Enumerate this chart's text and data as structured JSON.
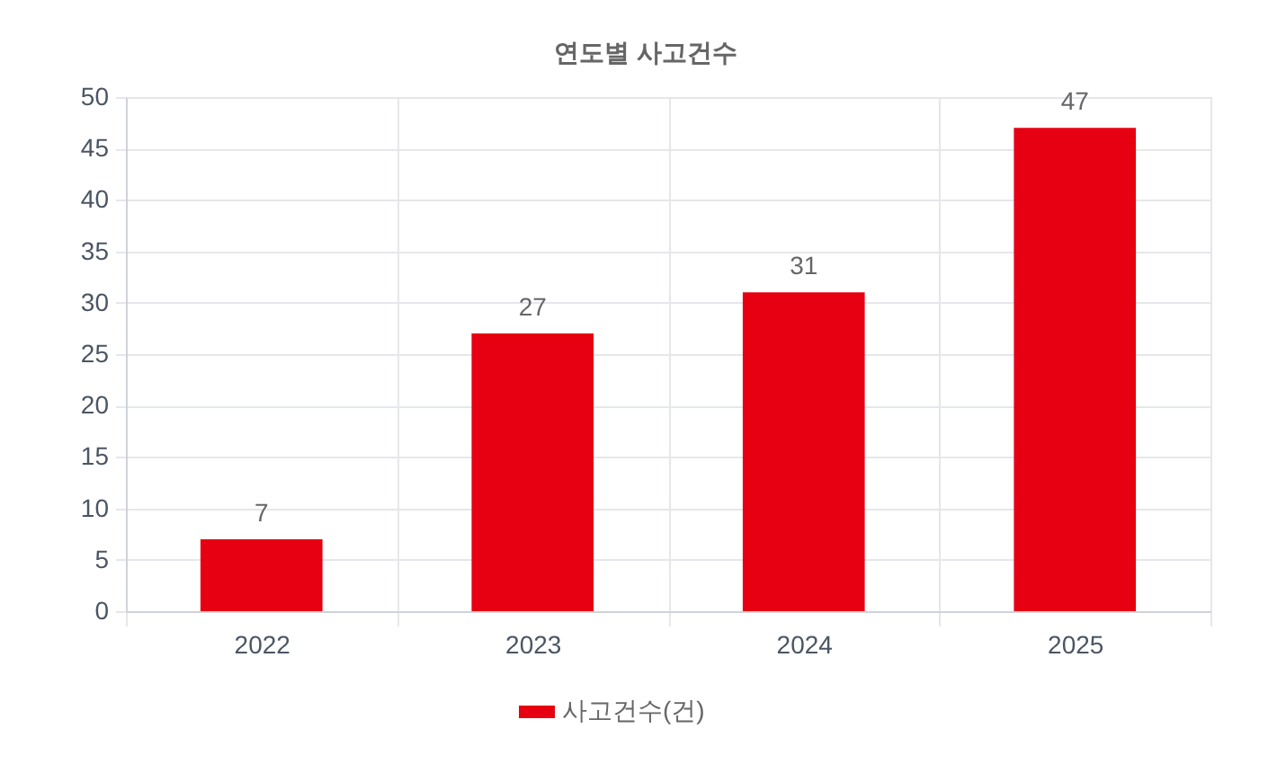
{
  "chart_data": {
    "type": "bar",
    "title": "연도별 사고건수",
    "categories": [
      "2022",
      "2023",
      "2024",
      "2025"
    ],
    "series": [
      {
        "name": "사고건수(건)",
        "color": "#e60012",
        "values": [
          7,
          27,
          31,
          47
        ]
      }
    ],
    "ylim": [
      0,
      50
    ],
    "yticks": [
      0,
      5,
      10,
      15,
      20,
      25,
      30,
      35,
      40,
      45,
      50
    ],
    "grid": true,
    "legend": "bottom",
    "data_labels": true
  }
}
